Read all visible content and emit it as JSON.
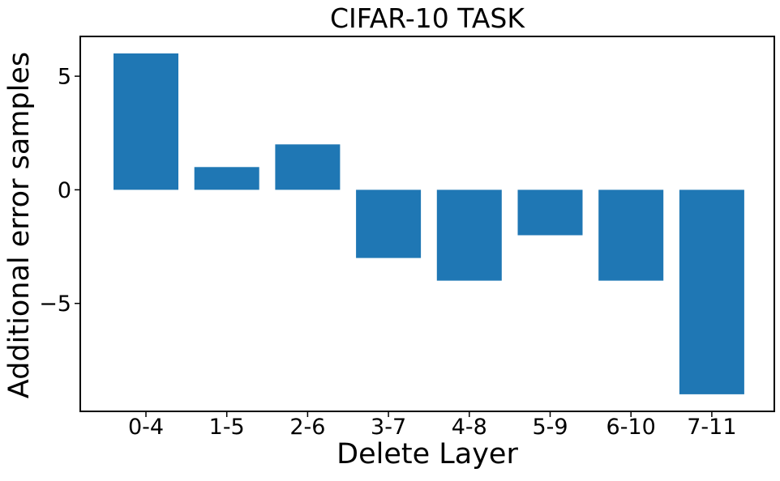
{
  "figure": {
    "background": "#ffffff",
    "text_color": "#000000"
  },
  "chart_data": {
    "type": "bar",
    "title": "CIFAR-10 TASK",
    "xlabel": "Delete Layer",
    "ylabel": "Additional error samples",
    "categories": [
      "0-4",
      "1-5",
      "2-6",
      "3-7",
      "4-8",
      "5-9",
      "6-10",
      "7-11"
    ],
    "values": [
      6,
      1,
      2,
      -3,
      -4,
      -2,
      -4,
      -9
    ],
    "bar_color": "#1f77b4",
    "ylim": [
      -9.75,
      6.75
    ],
    "yticks": [
      5,
      0,
      -5
    ],
    "grid": false,
    "legend_position": "none"
  }
}
